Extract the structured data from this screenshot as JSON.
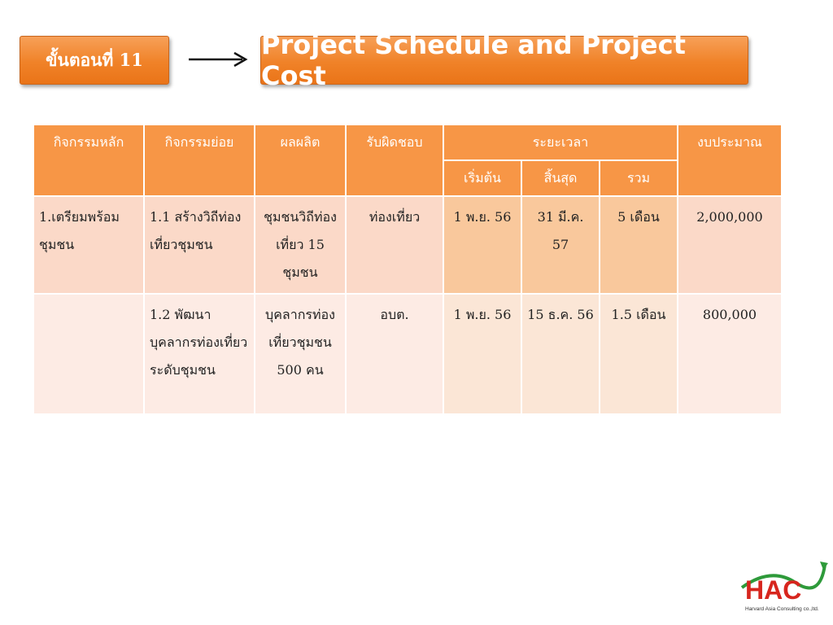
{
  "header": {
    "step_label": "ขั้นตอนที่ 11",
    "title": "Project Schedule and Project Cost"
  },
  "table": {
    "headers": {
      "main_activity": "กิจกรรมหลัก",
      "sub_activity": "กิจกรรมย่อย",
      "output": "ผลผลิต",
      "responsible": "รับผิดชอบ",
      "duration": "ระยะเวลา",
      "start": "เริ่มต้น",
      "end": "สิ้นสุด",
      "total": "รวม",
      "budget": "งบประมาณ"
    },
    "rows": [
      {
        "main_activity": "1.เตรียมพร้อมชุมชน",
        "sub_activity": "1.1 สร้างวิถีท่องเที่ยวชุมชน",
        "output": "ชุมชนวิถีท่องเที่ยว 15 ชุมชน",
        "responsible": "ท่องเที่ยว",
        "start": "1 พ.ย. 56",
        "end": "31 มี.ค. 57",
        "total": "5 เดือน",
        "budget": "2,000,000"
      },
      {
        "main_activity": "",
        "sub_activity": "1.2 พัฒนาบุคลากรท่องเที่ยวระดับชุมชน",
        "output": "บุคลากรท่องเที่ยวชุมชน 500 คน",
        "responsible": "อบต.",
        "start": "1 พ.ย. 56",
        "end": "15 ธ.ค. 56",
        "total": "1.5 เดือน",
        "budget": "800,000"
      }
    ]
  },
  "logo": {
    "text": "HAC",
    "subtitle": "Harvard Asia Consulting co.,ltd.",
    "colors": {
      "letters": "#d7261e",
      "swoosh": "#2e9a3a"
    }
  },
  "colors": {
    "header_orange": "#f79646",
    "row1_bg": "#fbd9c8",
    "row2_bg": "#fdebe4",
    "row1_time_bg": "#f9c89c",
    "row2_time_bg": "#fbe6d6"
  }
}
